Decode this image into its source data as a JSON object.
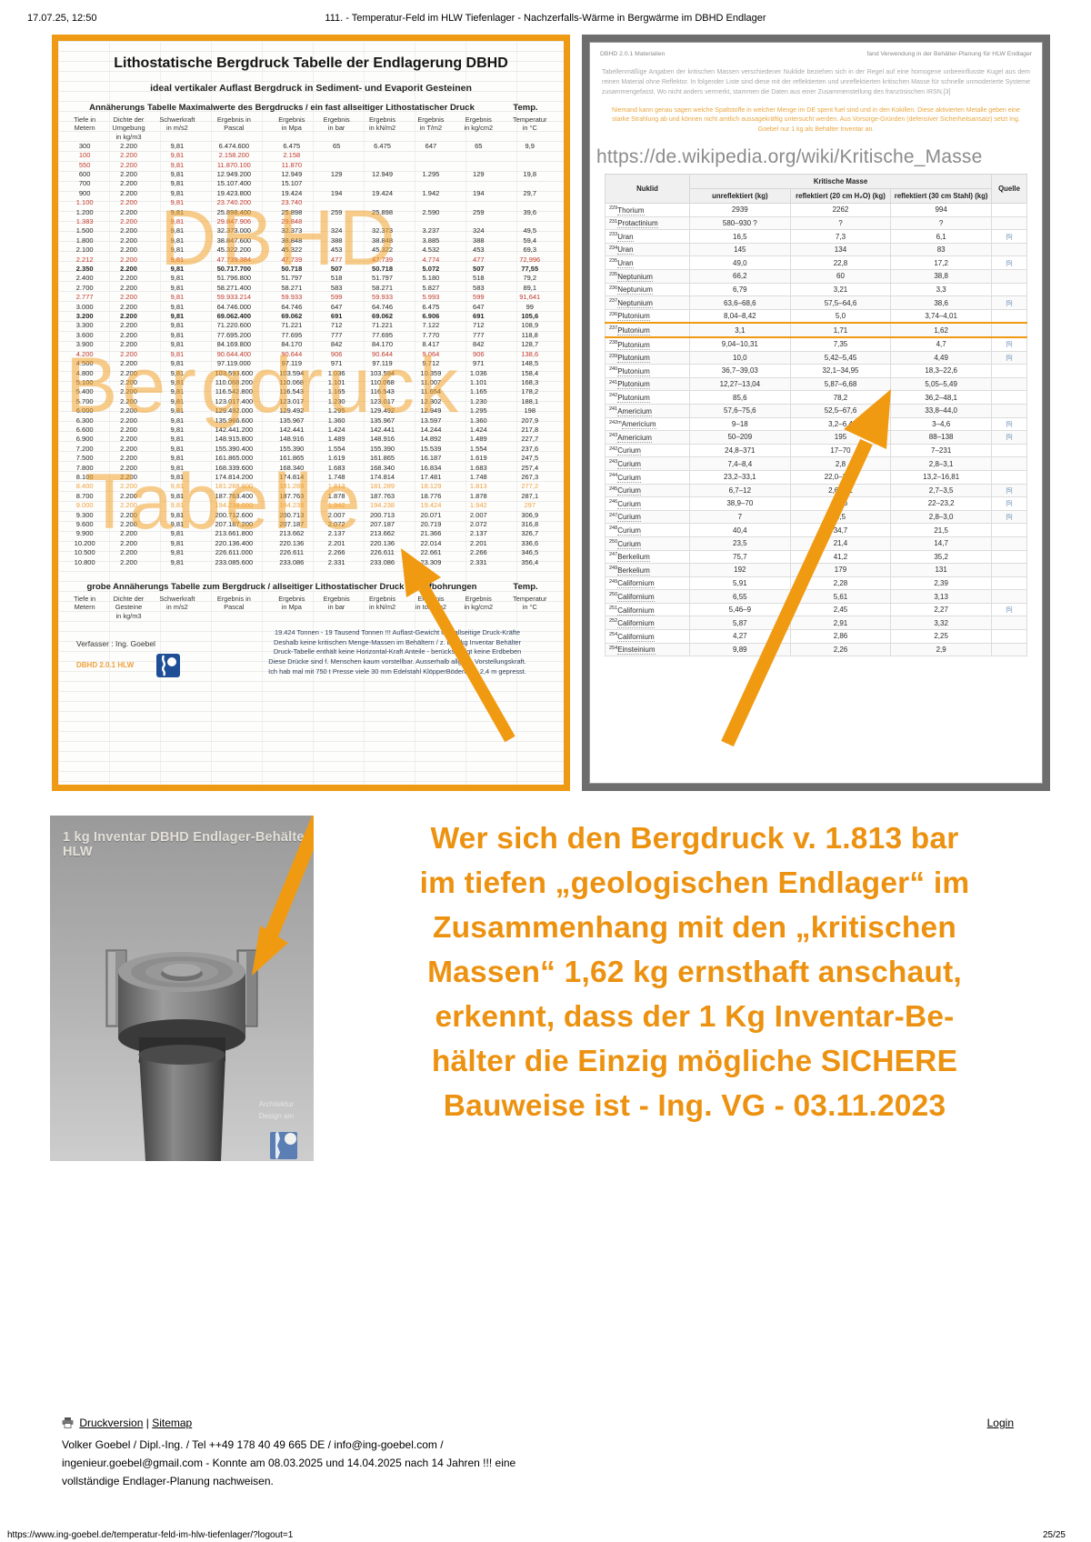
{
  "page": {
    "print_date": "17.07.25, 12:50",
    "doc_title": "111. - Temperatur-Feld im HLW Tiefenlager - Nachzerfalls-Wärme in Bergwärme im DBHD Endlager",
    "url": "https://www.ing-goebel.de/temperatur-feld-im-hlw-tiefenlager/?logout=1",
    "page_number": "25/25"
  },
  "bergdruck_panel": {
    "title": "Lithostatische Bergdruck Tabelle der Endlagerung DBHD",
    "subtitle": "ideal vertikaler Auflast Bergdruck in Sediment- und Evaporit Gesteinen",
    "approx_title": "Annäherungs Tabelle Maximalwerte des Bergdrucks / ein fast allseitiger Lithostatischer Druck",
    "temp_label": "Temp.",
    "watermark": {
      "line1": "DBHD",
      "line2": "Bergdruck",
      "line3": "Tabelle"
    },
    "columns": [
      [
        "Tiefe in",
        "Metern"
      ],
      [
        "Dichte der",
        "Umgebung",
        "in kg/m3"
      ],
      [
        "Schwerkraft",
        "in m/s2"
      ],
      [
        "Ergebnis in",
        "Pascal"
      ],
      [
        "Ergebnis",
        "in Mpa"
      ],
      [
        "Ergebnis",
        "in bar"
      ],
      [
        "Ergebnis",
        "in kN/m2"
      ],
      [
        "Ergebnis",
        "in T/m2"
      ],
      [
        "Ergebnis",
        "in kg/cm2"
      ],
      [
        "Temperatur",
        "in °C"
      ]
    ],
    "rows": [
      [
        "300",
        "2.200",
        "9,81",
        "6.474.600",
        "6.475",
        "65",
        "6.475",
        "647",
        "65",
        "9,9",
        "k"
      ],
      [
        "100",
        "2.200",
        "9,81",
        "2.158.200",
        "2.158",
        "",
        "",
        "",
        "",
        "",
        "r"
      ],
      [
        "550",
        "2.200",
        "9,81",
        "11.870.100",
        "11.870",
        "",
        "",
        "",
        "",
        "",
        "r"
      ],
      [
        "600",
        "2.200",
        "9,81",
        "12.949.200",
        "12.949",
        "129",
        "12.949",
        "1.295",
        "129",
        "19,8",
        "k"
      ],
      [
        "700",
        "2.200",
        "9,81",
        "15.107.400",
        "15.107",
        "",
        "",
        "",
        "",
        "",
        "k"
      ],
      [
        "900",
        "2.200",
        "9,81",
        "19.423.800",
        "19.424",
        "194",
        "19.424",
        "1.942",
        "194",
        "29,7",
        "k"
      ],
      [
        "1.100",
        "2.200",
        "9,81",
        "23.740.200",
        "23.740",
        "",
        "",
        "",
        "",
        "",
        "r"
      ],
      [
        "1.200",
        "2.200",
        "9,81",
        "25.898.400",
        "25.898",
        "259",
        "25.898",
        "2.590",
        "259",
        "39,6",
        "k"
      ],
      [
        "1.383",
        "2.200",
        "9,81",
        "29.847.906",
        "29.848",
        "",
        "",
        "",
        "",
        "",
        "r"
      ],
      [
        "1.500",
        "2.200",
        "9,81",
        "32.373.000",
        "32.373",
        "324",
        "32.373",
        "3.237",
        "324",
        "49,5",
        "k"
      ],
      [
        "1.800",
        "2.200",
        "9,81",
        "38.847.600",
        "38.848",
        "388",
        "38.848",
        "3.885",
        "388",
        "59,4",
        "k"
      ],
      [
        "2.100",
        "2.200",
        "9,81",
        "45.322.200",
        "45.322",
        "453",
        "45.322",
        "4.532",
        "453",
        "69,3",
        "k"
      ],
      [
        "2.212",
        "2.200",
        "9,81",
        "47.739.384",
        "47.739",
        "477",
        "47.739",
        "4.774",
        "477",
        "72,996",
        "r"
      ],
      [
        "2.350",
        "2.200",
        "9,81",
        "50.717.700",
        "50.718",
        "507",
        "50.718",
        "5.072",
        "507",
        "77,55",
        "b"
      ],
      [
        "2.400",
        "2.200",
        "9,81",
        "51.796.800",
        "51.797",
        "518",
        "51.797",
        "5.180",
        "518",
        "79,2",
        "k"
      ],
      [
        "2.700",
        "2.200",
        "9,81",
        "58.271.400",
        "58.271",
        "583",
        "58.271",
        "5.827",
        "583",
        "89,1",
        "k"
      ],
      [
        "2.777",
        "2.200",
        "9,81",
        "59.933.214",
        "59.933",
        "599",
        "59.933",
        "5.993",
        "599",
        "91,641",
        "r"
      ],
      [
        "3.000",
        "2.200",
        "9,81",
        "64.746.000",
        "64.746",
        "647",
        "64.746",
        "6.475",
        "647",
        "99",
        "k"
      ],
      [
        "3.200",
        "2.200",
        "9,81",
        "69.062.400",
        "69.062",
        "691",
        "69.062",
        "6.906",
        "691",
        "105,6",
        "b"
      ],
      [
        "3.300",
        "2.200",
        "9,81",
        "71.220.600",
        "71.221",
        "712",
        "71.221",
        "7.122",
        "712",
        "108,9",
        "k"
      ],
      [
        "3.600",
        "2.200",
        "9,81",
        "77.695.200",
        "77.695",
        "777",
        "77.695",
        "7.770",
        "777",
        "118,8",
        "k"
      ],
      [
        "3.900",
        "2.200",
        "9,81",
        "84.169.800",
        "84.170",
        "842",
        "84.170",
        "8.417",
        "842",
        "128,7",
        "k"
      ],
      [
        "4.200",
        "2.200",
        "9,81",
        "90.644.400",
        "90.644",
        "906",
        "90.644",
        "9.064",
        "906",
        "138,6",
        "r"
      ],
      [
        "4.500",
        "2.200",
        "9,81",
        "97.119.000",
        "97.119",
        "971",
        "97.119",
        "9.712",
        "971",
        "148,5",
        "k"
      ],
      [
        "4.800",
        "2.200",
        "9,81",
        "103.593.600",
        "103.594",
        "1.036",
        "103.594",
        "10.359",
        "1.036",
        "158,4",
        "k"
      ],
      [
        "5.100",
        "2.200",
        "9,81",
        "110.068.200",
        "110.068",
        "1.101",
        "110.068",
        "11.007",
        "1.101",
        "168,3",
        "k"
      ],
      [
        "5.400",
        "2.200",
        "9,81",
        "116.542.800",
        "116.543",
        "1.165",
        "116.543",
        "11.654",
        "1.165",
        "178,2",
        "k"
      ],
      [
        "5.700",
        "2.200",
        "9,81",
        "123.017.400",
        "123.017",
        "1.230",
        "123.017",
        "12.302",
        "1.230",
        "188,1",
        "k"
      ],
      [
        "6.000",
        "2.200",
        "9,81",
        "129.492.000",
        "129.492",
        "1.295",
        "129.492",
        "12.949",
        "1.295",
        "198",
        "k"
      ],
      [
        "6.300",
        "2.200",
        "9,81",
        "135.966.600",
        "135.967",
        "1.360",
        "135.967",
        "13.597",
        "1.360",
        "207,9",
        "k"
      ],
      [
        "6.600",
        "2.200",
        "9,81",
        "142.441.200",
        "142.441",
        "1.424",
        "142.441",
        "14.244",
        "1.424",
        "217,8",
        "k"
      ],
      [
        "6.900",
        "2.200",
        "9,81",
        "148.915.800",
        "148.916",
        "1.489",
        "148.916",
        "14.892",
        "1.489",
        "227,7",
        "k"
      ],
      [
        "7.200",
        "2.200",
        "9,81",
        "155.390.400",
        "155.390",
        "1.554",
        "155.390",
        "15.539",
        "1.554",
        "237,6",
        "k"
      ],
      [
        "7.500",
        "2.200",
        "9,81",
        "161.865.000",
        "161.865",
        "1.619",
        "161.865",
        "16.187",
        "1.619",
        "247,5",
        "k"
      ],
      [
        "7.800",
        "2.200",
        "9,81",
        "168.339.600",
        "168.340",
        "1.683",
        "168.340",
        "16.834",
        "1.683",
        "257,4",
        "k"
      ],
      [
        "8.100",
        "2.200",
        "9,81",
        "174.814.200",
        "174.814",
        "1.748",
        "174.814",
        "17.481",
        "1.748",
        "267,3",
        "k"
      ],
      [
        "8.400",
        "2.200",
        "9,81",
        "181.288.800",
        "181.289",
        "1.813",
        "181.289",
        "18.129",
        "1.813",
        "277,2",
        "o"
      ],
      [
        "8.700",
        "2.200",
        "9,81",
        "187.763.400",
        "187.763",
        "1.878",
        "187.763",
        "18.776",
        "1.878",
        "287,1",
        "k"
      ],
      [
        "9.000",
        "2.200",
        "9,81",
        "194.238.000",
        "194.238",
        "1.942",
        "194.238",
        "19.424",
        "1.942",
        "297",
        "o"
      ],
      [
        "9.300",
        "2.200",
        "9,81",
        "200.712.600",
        "200.713",
        "2.007",
        "200.713",
        "20.071",
        "2.007",
        "306,9",
        "k"
      ],
      [
        "9.600",
        "2.200",
        "9,81",
        "207.187.200",
        "207.187",
        "2.072",
        "207.187",
        "20.719",
        "2.072",
        "316,8",
        "k"
      ],
      [
        "9.900",
        "2.200",
        "9,81",
        "213.661.800",
        "213.662",
        "2.137",
        "213.662",
        "21.366",
        "2.137",
        "326,7",
        "k"
      ],
      [
        "10.200",
        "2.200",
        "9,81",
        "220.136.400",
        "220.136",
        "2.201",
        "220.136",
        "22.014",
        "2.201",
        "336,6",
        "k"
      ],
      [
        "10.500",
        "2.200",
        "9,81",
        "226.611.000",
        "226.611",
        "2.266",
        "226.611",
        "22.661",
        "2.266",
        "346,5",
        "k"
      ],
      [
        "10.800",
        "2.200",
        "9,81",
        "233.085.600",
        "233.086",
        "2.331",
        "233.086",
        "23.309",
        "2.331",
        "356,4",
        "k"
      ]
    ],
    "second_title": "grobe Annäherungs Tabelle zum Bergdruck / allseitiger Lithostatischer Druck in Tiefbohrungen",
    "second_columns": [
      [
        "Tiefe in",
        "Metern"
      ],
      [
        "Dichte der",
        "Gesteine",
        "in kg/m3"
      ],
      [
        "Schwerkraft",
        "in m/s2"
      ],
      [
        "Ergebnis in",
        "Pascal"
      ],
      [
        "Ergebnis",
        "in Mpa"
      ],
      [
        "Ergebnis",
        "in bar"
      ],
      [
        "Ergebnis",
        "in kN/m2"
      ],
      [
        "Ergebnis",
        "in tons/m2"
      ],
      [
        "Ergebnis",
        "in kg/cm2"
      ],
      [
        "Temperatur",
        "in °C"
      ]
    ],
    "verfasser": "Verfasser : Ing. Goebel",
    "version": "DBHD 2.0.1 HLW",
    "notes": [
      "19.424 Tonnen - 19 Tausend Tonnen !!! Auflast-Gewicht und allseitige Druck-Kräfte",
      "Deshalb keine kritischen Menge-Massen im Behältern / z. B. 1 kg Inventar Behälter",
      "Druck-Tabelle enthält keine Horizontal-Kraft Anteile - berücksichtigt keine Erdbeben",
      "Diese Drücke sind f. Menschen kaum vorstellbar. Ausserhalb allgem. Vorstellungskraft.",
      "Ich hab mal mit 750 t Presse viele 30 mm Edelstahl KlöpperBöden D = 2,4 m gepresst."
    ]
  },
  "kritische_masse_panel": {
    "header_left": "DBHD 2.0.1 Materialien",
    "header_right": "fand Verwendung in der Behälter-Planung für HLW Endlager",
    "intro_text": "Tabellenmäßige Angaben der kritischen Massen verschiedener Nuklide beziehen sich in der Regel auf eine homogene unbeeinflusste Kugel aus dem reinen Material ohne Reflektor. In folgender Liste sind diese mit der reflektierten und unreflektierten kritischen Masse für schnelle unmoderierte Systeme zusammengefasst. Wo nicht anders vermerkt, stammen die Daten aus einer Zusammenstellung des französischen IRSN.[3]",
    "warning_text": "Niemand kann genau sagen welche Spaltstoffe in welcher Menge im DE spent fuel sind und in den Kokillen. Diese aktivierten Metalle geben eine starke Strahlung ab und können nicht amtlich aussagekräftig untersucht werden. Aus Vorsorge-Gründen (defensiver Sicherheitsansatz) setzt Ing. Goebel nur 1 kg als Behälter Inventar an.",
    "wiki_url": "https://de.wikipedia.org/wiki/Kritische_Masse",
    "table": {
      "col_nuklid": "Nuklid",
      "group_header": "Kritische Masse",
      "col_quelle": "Quelle",
      "col_unreflektiert": "unreflektiert (kg)",
      "col_reflektiert_wasser": "reflektiert (20 cm H₂O) (kg)",
      "col_reflektiert_stahl": "reflektiert (30 cm Stahl) (kg)",
      "rows": [
        [
          "229",
          "Thorium",
          "2939",
          "2262",
          "994",
          "",
          false
        ],
        [
          "231",
          "Protactinium",
          "580–930  ?",
          "?",
          "?",
          "",
          false
        ],
        [
          "233",
          "Uran",
          "16,5",
          "7,3",
          "6,1",
          "[5]",
          false
        ],
        [
          "234",
          "Uran",
          "145",
          "134",
          "83",
          "",
          false
        ],
        [
          "235",
          "Uran",
          "49,0",
          "22,8",
          "17,2",
          "[5]",
          false
        ],
        [
          "235",
          "Neptunium",
          "66,2",
          "60",
          "38,8",
          "",
          false
        ],
        [
          "236",
          "Neptunium",
          "6,79",
          "3,21",
          "3,3",
          "",
          false
        ],
        [
          "237",
          "Neptunium",
          "63,6–68,6",
          "57,5–64,6",
          "38,6",
          "[5]",
          false
        ],
        [
          "236",
          "Plutonium",
          "8,04–8,42",
          "5,0",
          "3,74–4,01",
          "",
          false
        ],
        [
          "237",
          "Plutonium",
          "3,1",
          "1,71",
          "1,62",
          "",
          true
        ],
        [
          "238",
          "Plutonium",
          "9,04–10,31",
          "7,35",
          "4,7",
          "[5]",
          false
        ],
        [
          "239",
          "Plutonium",
          "10,0",
          "5,42–5,45",
          "4,49",
          "[5]",
          false
        ],
        [
          "240",
          "Plutonium",
          "36,7–39,03",
          "32,1–34,95",
          "18,3–22,6",
          "",
          false
        ],
        [
          "241",
          "Plutonium",
          "12,27–13,04",
          "5,87–6,68",
          "5,05–5,49",
          "",
          false
        ],
        [
          "242",
          "Plutonium",
          "85,6",
          "78,2",
          "36,2–48,1",
          "",
          false
        ],
        [
          "241",
          "Americium",
          "57,6–75,6",
          "52,5–67,6",
          "33,8–44,0",
          "",
          false
        ],
        [
          "242m",
          "Americium",
          "9–18",
          "3,2–6,4",
          "3–4,6",
          "[5]",
          false
        ],
        [
          "243",
          "Americium",
          "50–209",
          "195",
          "88–138",
          "[5]",
          false
        ],
        [
          "242",
          "Curium",
          "24,8–371",
          "17–70",
          "7–231",
          "",
          false
        ],
        [
          "243",
          "Curium",
          "7,4–8,4",
          "2,8",
          "2,8–3,1",
          "",
          false
        ],
        [
          "244",
          "Curium",
          "23,2–33,1",
          "22,0–27,1",
          "13,2–16,81",
          "",
          false
        ],
        [
          "245",
          "Curium",
          "6,7–12",
          "2,6–3,1",
          "2,7–3,5",
          "[5]",
          false
        ],
        [
          "246",
          "Curium",
          "38,9–70",
          "33,6",
          "22–23,2",
          "[5]",
          false
        ],
        [
          "247",
          "Curium",
          "7",
          "3,5",
          "2,8–3,0",
          "[5]",
          false
        ],
        [
          "248",
          "Curium",
          "40,4",
          "34,7",
          "21,5",
          "",
          false
        ],
        [
          "250",
          "Curium",
          "23,5",
          "21,4",
          "14,7",
          "",
          false
        ],
        [
          "247",
          "Berkelium",
          "75,7",
          "41,2",
          "35,2",
          "",
          false
        ],
        [
          "249",
          "Berkelium",
          "192",
          "179",
          "131",
          "",
          false
        ],
        [
          "249",
          "Californium",
          "5,91",
          "2,28",
          "2,39",
          "",
          false
        ],
        [
          "250",
          "Californium",
          "6,55",
          "5,61",
          "3,13",
          "",
          false
        ],
        [
          "251",
          "Californium",
          "5,46–9",
          "2,45",
          "2,27",
          "[5]",
          false
        ],
        [
          "252",
          "Californium",
          "5,87",
          "2,91",
          "3,32",
          "",
          false
        ],
        [
          "254",
          "Californium",
          "4,27",
          "2,86",
          "2,25",
          "",
          false
        ],
        [
          "254",
          "Einsteinium",
          "9,89",
          "2,26",
          "2,9",
          "",
          false
        ]
      ]
    }
  },
  "canister": {
    "caption": "1 kg Inventar DBHD Endlager-Behälter HLW",
    "watermark_line1": "Architektur",
    "watermark_line2": "Design am"
  },
  "statement": {
    "lines": [
      "Wer sich den Bergdruck v. 1.813 bar",
      "im tiefen „geologischen Endlager“ im",
      "Zusammenhang mit den „kritischen",
      "Massen“ 1,62 kg ernsthaft anschaut,",
      "erkennt, dass der 1 Kg Inventar-Be-",
      "hälter die Einzig mögliche SICHERE",
      "Bauweise ist - Ing. VG - 03.11.2023"
    ]
  },
  "footer": {
    "druckversion": "Druckversion",
    "separator": "|",
    "sitemap": "Sitemap",
    "login": "Login",
    "contact_line1": "Volker Goebel / Dipl.-Ing. / Tel ++49 178 40 49 665 DE / info@ing-goebel.com /",
    "contact_line2": "ingenieur.goebel@gmail.com - Konnte am 08.03.2025 und 14.04.2025 nach 14 Jahren !!! eine",
    "contact_line3": "vollständige Endlager-Planung nachweisen."
  },
  "colors": {
    "accent_orange": "#EE9A15",
    "statement_orange": "#EC9210",
    "table_red": "#C0392B",
    "panel_border_gray": "#6d6d6d",
    "logo_blue": "#1d4e96"
  }
}
